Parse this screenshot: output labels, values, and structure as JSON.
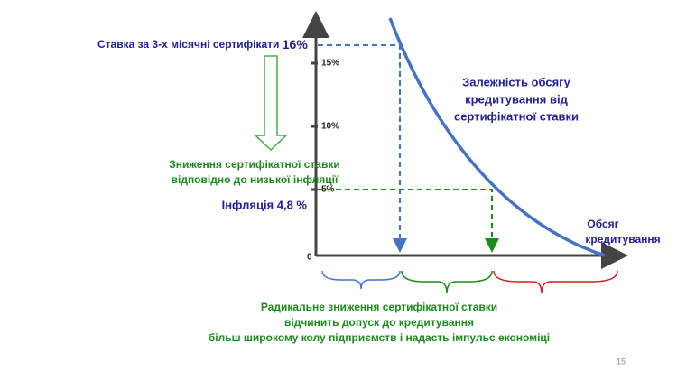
{
  "rate": {
    "text": "Ставка за 3-х місячні сертифікати",
    "value": "16%"
  },
  "reduction": [
    "Зниження сертифікатної ставки",
    "відповідно до низької інфляції"
  ],
  "inflation": "Інфляція 4,8 %",
  "curve_label": [
    "Залежність обсягу",
    "кредитування від",
    "сертифікатної ставки"
  ],
  "x_axis_label": [
    "Обсяг",
    "кредитування"
  ],
  "y_axis_labels": [
    "15%",
    "10%",
    "5%",
    "0"
  ],
  "conclusion": [
    "Радикальне зниження сертифікатної ставки",
    "відчинить допуск до кредитування",
    "більш широкому колу підприємств і надасть імпульс економіці"
  ],
  "page_number": "15"
}
